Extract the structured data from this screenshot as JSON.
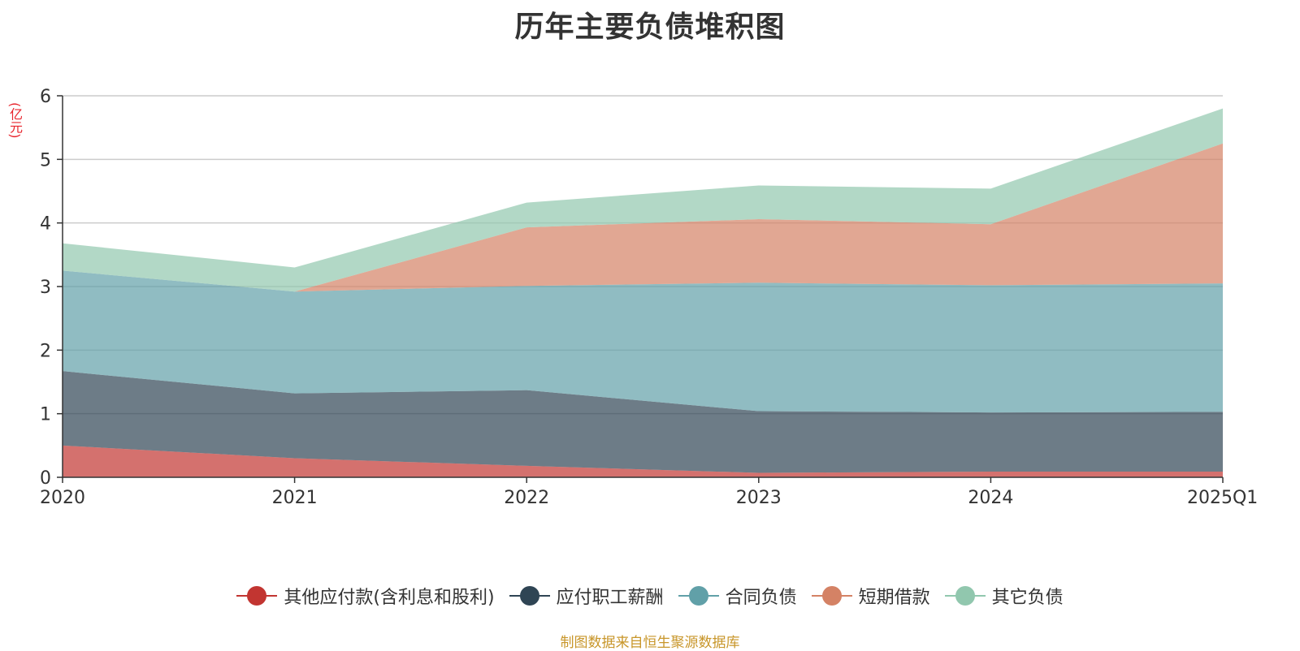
{
  "chart_data": {
    "type": "area",
    "stacked": true,
    "title": "历年主要负债堆积图",
    "y_unit": "(亿元)",
    "categories": [
      "2020",
      "2021",
      "2022",
      "2023",
      "2024",
      "2025Q1"
    ],
    "ylim": [
      0,
      6
    ],
    "y_ticks": [
      "0",
      "1",
      "2",
      "3",
      "4",
      "5",
      "6"
    ],
    "grid": true,
    "legend_position": "bottom",
    "series": [
      {
        "name": "其他应付款(含利息和股利)",
        "color": "#c23531",
        "values": [
          0.5,
          0.3,
          0.18,
          0.07,
          0.09,
          0.09
        ]
      },
      {
        "name": "应付职工薪酬",
        "color": "#2f4554",
        "values": [
          1.17,
          1.02,
          1.19,
          0.97,
          0.93,
          0.94
        ]
      },
      {
        "name": "合同负债",
        "color": "#61a0a8",
        "values": [
          1.58,
          1.6,
          1.64,
          2.02,
          2.0,
          2.02
        ]
      },
      {
        "name": "短期借款",
        "color": "#d48265",
        "values": [
          0.0,
          0.0,
          0.92,
          1.0,
          0.96,
          2.2
        ]
      },
      {
        "name": "其它负债",
        "color": "#91c7ae",
        "values": [
          0.43,
          0.38,
          0.39,
          0.53,
          0.56,
          0.55
        ]
      }
    ],
    "source": "制图数据来自恒生聚源数据库"
  }
}
